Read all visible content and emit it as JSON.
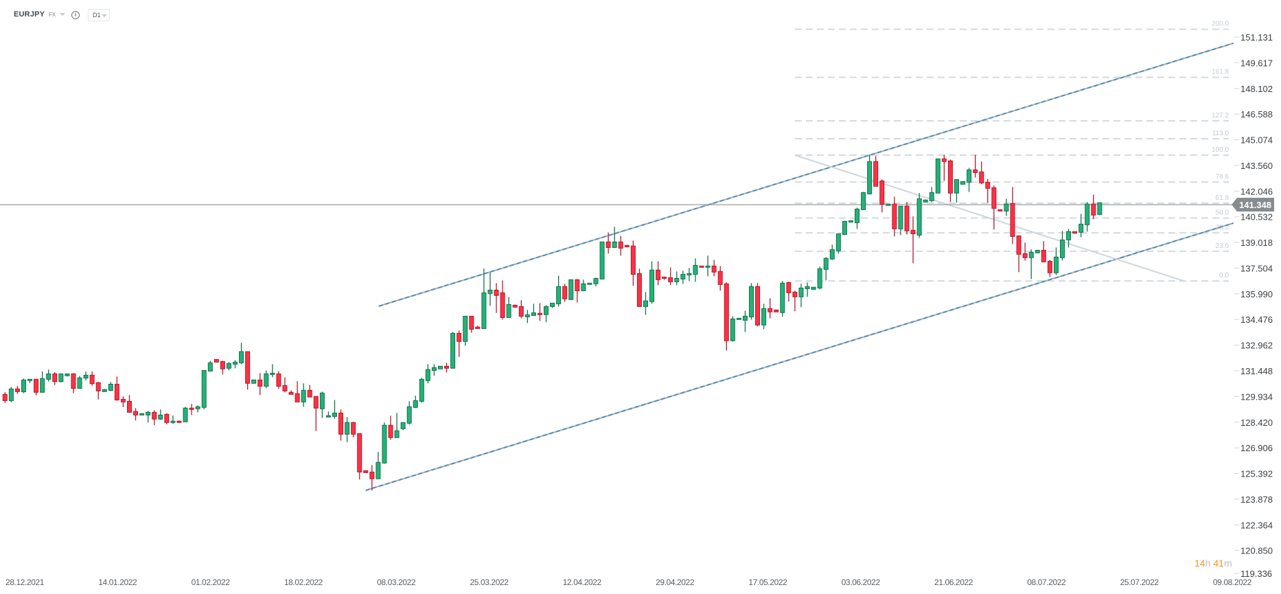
{
  "header": {
    "symbol": "EURJPY",
    "market": "FX",
    "info_icon": "info-icon",
    "timeframe": "D1"
  },
  "price_label": "141.348",
  "countdown": {
    "hours": "14",
    "h": "h",
    "minutes": "41",
    "m": "m"
  },
  "colors": {
    "up_fill": "#24b27a",
    "up_stroke": "#13714a",
    "down_fill": "#ff3146",
    "down_stroke": "#b01a2b",
    "channel": "#4a8fbf",
    "fib": "#d3dade",
    "price_line": "#8a9095",
    "countdown": "#f7931e"
  },
  "chart_data": {
    "type": "candlestick",
    "title": "EURJPY",
    "timeframe": "D1",
    "y_ticks": [
      "151.131",
      "149.617",
      "148.102",
      "146.588",
      "145.074",
      "143.560",
      "142.046",
      "140.532",
      "139.018",
      "137.504",
      "135.990",
      "134.476",
      "132.962",
      "131.448",
      "129.934",
      "128.420",
      "126.906",
      "125.392",
      "123.878",
      "122.364",
      "120.850",
      "119.336"
    ],
    "x_ticks": [
      "28.12.2021",
      "14.01.2022",
      "01.02.2022",
      "18.02.2022",
      "08.03.2022",
      "25.03.2022",
      "12.04.2022",
      "29.04.2022",
      "17.05.2022",
      "03.06.2022",
      "21.06.2022",
      "08.07.2022",
      "25.07.2022",
      "09.08.2022"
    ],
    "ylim": [
      119.336,
      151.131
    ],
    "last_price": 141.348,
    "ohlc": [
      [
        130.06,
        130.19,
        129.56,
        129.69
      ],
      [
        129.69,
        130.5,
        129.6,
        130.38
      ],
      [
        130.38,
        130.56,
        130.09,
        130.22
      ],
      [
        130.21,
        131.0,
        130.13,
        130.91
      ],
      [
        130.87,
        130.95,
        130.73,
        130.95
      ],
      [
        130.95,
        130.95,
        130.0,
        130.18
      ],
      [
        130.18,
        131.41,
        130.18,
        130.99
      ],
      [
        130.95,
        131.52,
        130.81,
        131.27
      ],
      [
        131.27,
        131.37,
        130.61,
        130.81
      ],
      [
        130.81,
        131.27,
        130.77,
        131.27
      ],
      [
        131.15,
        131.27,
        131.15,
        131.27
      ],
      [
        131.27,
        131.31,
        130.13,
        130.41
      ],
      [
        130.41,
        131.15,
        130.41,
        131.03
      ],
      [
        131.02,
        131.41,
        130.89,
        131.19
      ],
      [
        131.19,
        131.41,
        130.57,
        130.69
      ],
      [
        130.75,
        130.79,
        129.76,
        130.26
      ],
      [
        130.22,
        130.38,
        130.22,
        130.34
      ],
      [
        130.29,
        130.79,
        130.25,
        130.66
      ],
      [
        130.66,
        131.11,
        129.69,
        129.73
      ],
      [
        129.77,
        129.94,
        129.3,
        129.61
      ],
      [
        129.65,
        130.02,
        129.0,
        129.0
      ],
      [
        129.05,
        129.25,
        128.52,
        128.84
      ],
      [
        128.84,
        128.96,
        128.84,
        128.92
      ],
      [
        128.84,
        129.09,
        128.4,
        129.0
      ],
      [
        129.0,
        129.13,
        128.24,
        128.6
      ],
      [
        128.6,
        129.17,
        128.56,
        128.84
      ],
      [
        128.88,
        128.96,
        128.29,
        128.4
      ],
      [
        128.4,
        128.81,
        128.32,
        128.48
      ],
      [
        128.48,
        128.52,
        128.4,
        128.4
      ],
      [
        128.44,
        129.33,
        128.44,
        129.25
      ],
      [
        129.25,
        129.49,
        128.84,
        129.17
      ],
      [
        129.21,
        129.41,
        129.0,
        129.33
      ],
      [
        129.29,
        131.47,
        129.17,
        131.47
      ],
      [
        131.43,
        132.04,
        131.43,
        131.92
      ],
      [
        132.12,
        132.12,
        131.96,
        131.96
      ],
      [
        132.0,
        132.04,
        131.23,
        131.56
      ],
      [
        131.6,
        131.96,
        131.48,
        131.88
      ],
      [
        131.84,
        132.08,
        131.6,
        131.96
      ],
      [
        131.92,
        133.1,
        131.84,
        132.58
      ],
      [
        132.58,
        132.58,
        130.34,
        130.71
      ],
      [
        130.71,
        130.91,
        130.71,
        130.91
      ],
      [
        130.91,
        131.31,
        130.02,
        130.54
      ],
      [
        130.54,
        131.47,
        130.42,
        131.27
      ],
      [
        131.23,
        131.84,
        131.07,
        131.31
      ],
      [
        131.27,
        131.43,
        130.38,
        130.54
      ],
      [
        130.58,
        131.07,
        130.18,
        130.26
      ],
      [
        130.18,
        130.3,
        130.06,
        130.06
      ],
      [
        130.1,
        130.83,
        129.61,
        129.61
      ],
      [
        129.61,
        130.71,
        129.32,
        130.3
      ],
      [
        130.3,
        130.62,
        129.9,
        129.9
      ],
      [
        129.94,
        129.94,
        127.9,
        129.25
      ],
      [
        129.21,
        130.22,
        128.67,
        130.14
      ],
      [
        128.72,
        129.05,
        128.72,
        128.8
      ],
      [
        128.76,
        129.73,
        128.63,
        128.96
      ],
      [
        128.96,
        129.17,
        127.33,
        127.71
      ],
      [
        127.71,
        128.72,
        127.25,
        128.4
      ],
      [
        128.4,
        128.44,
        127.53,
        127.71
      ],
      [
        127.75,
        127.75,
        125.04,
        125.48
      ],
      [
        125.56,
        125.56,
        125.44,
        125.44
      ],
      [
        125.48,
        125.89,
        124.39,
        125.08
      ],
      [
        125.08,
        126.66,
        125.08,
        126.05
      ],
      [
        126.01,
        128.4,
        125.97,
        128.24
      ],
      [
        128.24,
        128.8,
        127.38,
        127.51
      ],
      [
        127.51,
        128.96,
        127.51,
        127.91
      ],
      [
        128.03,
        128.4,
        127.95,
        128.4
      ],
      [
        128.36,
        129.65,
        128.28,
        129.33
      ],
      [
        129.29,
        129.98,
        129.25,
        129.69
      ],
      [
        129.65,
        131.03,
        129.57,
        130.95
      ],
      [
        130.87,
        131.84,
        130.71,
        131.52
      ],
      [
        131.47,
        131.84,
        131.15,
        131.64
      ],
      [
        131.56,
        131.72,
        131.56,
        131.72
      ],
      [
        131.72,
        131.92,
        131.35,
        131.6
      ],
      [
        131.6,
        133.74,
        131.6,
        133.66
      ],
      [
        133.66,
        133.82,
        132.27,
        133.18
      ],
      [
        133.18,
        134.67,
        132.93,
        134.67
      ],
      [
        134.67,
        134.67,
        133.7,
        133.9
      ],
      [
        134.03,
        134.11,
        133.94,
        133.94
      ],
      [
        133.94,
        137.48,
        133.94,
        136.05
      ],
      [
        136.01,
        137.24,
        135.28,
        136.21
      ],
      [
        136.21,
        136.62,
        134.86,
        135.89
      ],
      [
        136.05,
        136.78,
        134.47,
        134.59
      ],
      [
        134.59,
        135.81,
        134.59,
        135.36
      ],
      [
        135.32,
        135.36,
        135.2,
        135.2
      ],
      [
        135.24,
        135.61,
        134.55,
        134.67
      ],
      [
        134.63,
        135.04,
        134.27,
        134.75
      ],
      [
        134.71,
        135.4,
        134.71,
        134.87
      ],
      [
        134.84,
        135.44,
        134.39,
        134.76
      ],
      [
        134.76,
        135.32,
        134.31,
        135.24
      ],
      [
        135.24,
        135.44,
        135.16,
        135.44
      ],
      [
        135.4,
        137.06,
        135.24,
        136.42
      ],
      [
        136.42,
        136.58,
        135.52,
        135.69
      ],
      [
        135.65,
        136.82,
        135.65,
        136.82
      ],
      [
        136.82,
        136.86,
        135.48,
        136.17
      ],
      [
        136.17,
        136.82,
        136.17,
        136.58
      ],
      [
        136.54,
        136.62,
        136.54,
        136.62
      ],
      [
        136.58,
        136.94,
        136.42,
        136.9
      ],
      [
        136.86,
        139.05,
        136.86,
        139.05
      ],
      [
        139.05,
        139.61,
        138.36,
        138.72
      ],
      [
        138.72,
        139.94,
        138.72,
        139.05
      ],
      [
        139.05,
        139.41,
        138.24,
        138.68
      ],
      [
        138.85,
        138.85,
        138.72,
        138.76
      ],
      [
        138.81,
        139.13,
        136.46,
        137.14
      ],
      [
        137.18,
        137.47,
        135.24,
        135.24
      ],
      [
        135.24,
        136.09,
        134.75,
        135.57
      ],
      [
        135.53,
        137.91,
        135.4,
        137.39
      ],
      [
        137.39,
        137.91,
        136.5,
        136.82
      ],
      [
        136.98,
        136.98,
        136.82,
        136.9
      ],
      [
        136.94,
        137.55,
        136.5,
        136.7
      ],
      [
        136.7,
        137.31,
        136.5,
        136.9
      ],
      [
        136.86,
        137.35,
        136.58,
        137.14
      ],
      [
        137.1,
        137.51,
        136.74,
        137.18
      ],
      [
        137.14,
        138.08,
        136.7,
        137.67
      ],
      [
        137.63,
        137.63,
        137.55,
        137.55
      ],
      [
        137.55,
        138.24,
        137.02,
        137.63
      ],
      [
        137.63,
        137.99,
        137.02,
        137.27
      ],
      [
        137.31,
        137.63,
        136.17,
        136.54
      ],
      [
        136.58,
        136.66,
        132.65,
        133.22
      ],
      [
        133.22,
        134.67,
        133.18,
        134.51
      ],
      [
        134.47,
        134.55,
        134.47,
        134.55
      ],
      [
        134.43,
        134.99,
        133.74,
        134.67
      ],
      [
        134.63,
        136.62,
        134.47,
        136.42
      ],
      [
        136.42,
        136.62,
        134.07,
        134.15
      ],
      [
        134.15,
        135.4,
        133.9,
        135.12
      ],
      [
        135.12,
        135.73,
        134.55,
        134.92
      ],
      [
        135.04,
        135.04,
        134.92,
        134.92
      ],
      [
        134.88,
        136.74,
        134.63,
        136.62
      ],
      [
        136.66,
        136.7,
        135.53,
        136.05
      ],
      [
        136.09,
        136.17,
        134.96,
        135.81
      ],
      [
        135.81,
        136.58,
        135.2,
        136.33
      ],
      [
        136.29,
        136.66,
        135.81,
        136.42
      ],
      [
        136.25,
        136.38,
        136.25,
        136.38
      ],
      [
        136.33,
        137.59,
        136.25,
        137.47
      ],
      [
        137.43,
        138.16,
        136.78,
        138.08
      ],
      [
        138.04,
        138.89,
        137.99,
        138.6
      ],
      [
        138.52,
        139.53,
        138.36,
        139.53
      ],
      [
        139.49,
        140.3,
        139.45,
        140.26
      ],
      [
        140.22,
        140.3,
        140.22,
        140.3
      ],
      [
        140.18,
        141.07,
        139.82,
        140.99
      ],
      [
        140.95,
        142.0,
        140.95,
        141.96
      ],
      [
        141.88,
        144.19,
        141.88,
        143.79
      ],
      [
        143.79,
        144.11,
        142.33,
        142.33
      ],
      [
        142.65,
        142.73,
        140.79,
        141.28
      ],
      [
        141.2,
        141.28,
        141.2,
        141.28
      ],
      [
        141.28,
        141.72,
        139.37,
        139.82
      ],
      [
        139.82,
        141.16,
        139.45,
        141.16
      ],
      [
        141.16,
        141.4,
        139.49,
        139.7
      ],
      [
        139.74,
        140.55,
        137.79,
        139.53
      ],
      [
        139.45,
        141.93,
        139.29,
        141.6
      ],
      [
        141.4,
        141.56,
        141.4,
        141.52
      ],
      [
        141.48,
        142.29,
        141.4,
        141.96
      ],
      [
        141.93,
        143.95,
        141.93,
        143.95
      ],
      [
        143.95,
        144.19,
        142.65,
        143.79
      ],
      [
        143.83,
        143.91,
        141.4,
        141.93
      ],
      [
        141.93,
        142.73,
        141.36,
        142.73
      ],
      [
        142.45,
        142.61,
        142.45,
        142.61
      ],
      [
        142.57,
        143.42,
        142.0,
        143.3
      ],
      [
        143.3,
        144.19,
        142.85,
        143.14
      ],
      [
        143.18,
        143.79,
        142.45,
        142.53
      ],
      [
        142.57,
        142.77,
        141.36,
        142.21
      ],
      [
        142.25,
        142.37,
        139.78,
        141.03
      ],
      [
        140.95,
        140.95,
        140.87,
        140.87
      ],
      [
        140.87,
        141.6,
        140.59,
        141.28
      ],
      [
        141.32,
        142.29,
        138.93,
        139.37
      ],
      [
        139.41,
        139.41,
        137.27,
        138.32
      ],
      [
        138.36,
        139.01,
        137.95,
        138.12
      ],
      [
        138.12,
        138.6,
        136.86,
        138.44
      ],
      [
        138.4,
        138.56,
        138.4,
        138.56
      ],
      [
        138.56,
        139.09,
        137.87,
        137.87
      ],
      [
        137.91,
        137.99,
        136.98,
        137.23
      ],
      [
        137.23,
        138.72,
        137.1,
        138.16
      ],
      [
        138.12,
        139.7,
        137.95,
        139.17
      ],
      [
        139.17,
        139.82,
        138.72,
        139.66
      ],
      [
        139.66,
        139.66,
        139.53,
        139.57
      ],
      [
        139.62,
        140.71,
        139.33,
        140.1
      ],
      [
        140.06,
        141.4,
        139.66,
        141.28
      ],
      [
        141.28,
        141.84,
        140.39,
        140.63
      ],
      [
        140.67,
        141.36,
        140.63,
        141.36
      ]
    ],
    "trendlines": [
      {
        "name": "channel-upper",
        "from": {
          "bar": 60.1,
          "price": 135.26
        },
        "to": {
          "bar": 197.5,
          "price": 150.77
        }
      },
      {
        "name": "channel-lower",
        "from": {
          "bar": 58.0,
          "price": 124.4
        },
        "to": {
          "bar": 197.5,
          "price": 140.16
        }
      },
      {
        "name": "fib-diagonal",
        "from": {
          "bar": 127.0,
          "price": 144.17
        },
        "to": {
          "bar": 189.5,
          "price": 136.75
        }
      }
    ],
    "fibonacci": {
      "from_bar": 127.0,
      "price_100": 144.17,
      "price_0": 136.75,
      "levels": [
        "200.0",
        "161.8",
        "127.2",
        "113.0",
        "100.0",
        "78.6",
        "61.8",
        "50.0",
        "38.2",
        "23.6",
        "0.0"
      ]
    }
  }
}
